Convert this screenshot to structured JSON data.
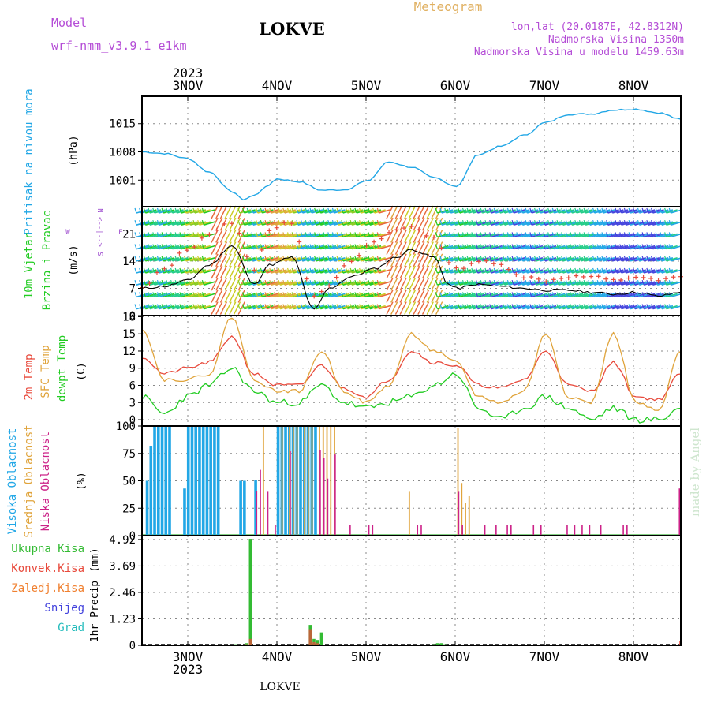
{
  "header": {
    "model_label": "Model",
    "model_value": "wrf-nmm_v3.9.1  e1km",
    "location": "LOKVE",
    "meteogram": "Meteogram",
    "lonlat": "lon,lat (20.0187E, 42.8312N)",
    "altitude": "Nadmorska Visina 1350m",
    "model_altitude": "Nadmorska Visina u modelu 1459.63m",
    "footer": "LOKVE",
    "watermark": "made by Angel",
    "year_top": "2023",
    "year_bottom": "2023",
    "days": [
      "3NOV",
      "4NOV",
      "5NOV",
      "6NOV",
      "7NOV",
      "8NOV"
    ]
  },
  "colors": {
    "pressure": "#22a7e6",
    "wind_speed_line": "#000000",
    "gust": "#e84a3c",
    "temp2m": "#e84a3c",
    "sfc_temp": "#e0a43c",
    "dewpt": "#22cc22",
    "cloud_high": "#22a7e6",
    "cloud_mid": "#e0a43c",
    "cloud_low": "#cc2288",
    "precip_total": "#33bb33",
    "precip_conv": "#e84a3c",
    "precip_frozen": "#f08030",
    "precip_snow": "#4444dd",
    "precip_grad": "#22bbbb"
  },
  "chart_data": [
    {
      "type": "line",
      "panel": "pressure",
      "ylabel_left": "Pritisak na nivou mora",
      "unit": "(hPa)",
      "yticks": [
        1001,
        1008,
        1015
      ],
      "ylim": [
        994.4,
        1021.8
      ],
      "x_hours": [
        0,
        6,
        12,
        18,
        24,
        27,
        30,
        33,
        36,
        42,
        48,
        54,
        60,
        66,
        72,
        78,
        84,
        90,
        96,
        102,
        108,
        114,
        120,
        126,
        132,
        138,
        144
      ],
      "values": [
        1008,
        1007.6,
        1006.4,
        1003,
        998.2,
        996.2,
        997.2,
        999.2,
        1001.3,
        1000.6,
        998.5,
        998.6,
        1000.7,
        1005.5,
        1004.2,
        1001.6,
        999.5,
        1007.4,
        1009.4,
        1012.1,
        1015.3,
        1017.3,
        1017.4,
        1018.4,
        1018.6,
        1017.7,
        1016.1
      ]
    },
    {
      "type": "line",
      "panel": "wind",
      "ylabel_left": [
        "10m Vjetar",
        "Brzina i Pravac"
      ],
      "unit": "(m/s)",
      "compass": {
        "w": "W",
        "e": "E",
        "n": "N",
        "s": "S"
      },
      "yticks": [
        0,
        7,
        14,
        21
      ],
      "ylim": [
        0,
        28
      ],
      "series": [
        {
          "name": "speed",
          "x_hours": [
            0,
            6,
            12,
            18,
            24,
            30,
            34,
            40,
            46,
            50,
            56,
            62,
            68,
            72,
            78,
            82,
            84,
            90,
            96,
            102,
            108,
            114,
            120,
            126,
            132,
            138,
            144
          ],
          "values": [
            7,
            7.5,
            9,
            13,
            18,
            8,
            13,
            15,
            1.5,
            7,
            10,
            12,
            15,
            17,
            15,
            8,
            7,
            8,
            7.5,
            7,
            6.5,
            6.5,
            6,
            5.5,
            6,
            5,
            6
          ]
        },
        {
          "name": "gust",
          "x_hours": [
            0,
            6,
            12,
            18,
            24,
            30,
            34,
            40,
            46,
            50,
            56,
            62,
            68,
            72,
            78,
            82,
            84,
            90,
            96,
            102,
            108,
            114,
            120,
            126,
            132,
            138,
            144
          ],
          "values": [
            7,
            12,
            17,
            21,
            24,
            12,
            22,
            24,
            5,
            8,
            14,
            19,
            22,
            23,
            20,
            14,
            12,
            14,
            13,
            10,
            9,
            10,
            10,
            9,
            10,
            9,
            10
          ]
        }
      ]
    },
    {
      "type": "line",
      "panel": "temperature",
      "ylabel_left": [
        "2m Temp",
        "SFC Temp",
        "dewpt Temp"
      ],
      "unit": "(C)",
      "yticks": [
        0,
        3,
        6,
        9,
        12,
        15,
        18
      ],
      "ylim": [
        -1.1,
        18.2
      ],
      "x_hours": [
        0,
        6,
        12,
        18,
        24,
        30,
        36,
        42,
        48,
        54,
        60,
        66,
        72,
        78,
        84,
        90,
        96,
        102,
        108,
        114,
        120,
        126,
        132,
        138,
        144
      ],
      "series": [
        {
          "name": "2m Temp",
          "values": [
            11,
            8,
            9,
            10,
            14.5,
            8,
            6,
            6,
            9.5,
            5.5,
            4,
            7,
            12,
            10,
            9.5,
            6,
            5.5,
            7,
            12,
            6,
            5,
            10,
            4,
            3.5,
            8
          ]
        },
        {
          "name": "SFC Temp",
          "values": [
            16,
            7,
            7,
            8,
            18,
            7,
            5,
            5,
            12,
            5,
            3,
            6,
            15,
            12,
            10,
            4,
            3,
            5,
            15,
            4,
            3,
            15,
            3,
            1.5,
            12
          ]
        },
        {
          "name": "dewpt Temp",
          "values": [
            4,
            1,
            4,
            6,
            9,
            5,
            3,
            3,
            6,
            3,
            2,
            3,
            4,
            6,
            8,
            2,
            0,
            2,
            4,
            2,
            0,
            2,
            0,
            0,
            2
          ]
        }
      ]
    },
    {
      "type": "bar",
      "panel": "clouds",
      "ylabel_left": [
        "Visoka Oblacnost",
        "Srednja Oblacnost",
        "Niska Oblacnost"
      ],
      "unit": "(%)",
      "yticks": [
        0,
        25,
        50,
        75,
        100
      ],
      "ylim": [
        0,
        100
      ],
      "series": [
        {
          "name": "Visoka Oblacnost",
          "hours": [
            1,
            2,
            3,
            4,
            5,
            6,
            7,
            11,
            12,
            13,
            14,
            15,
            16,
            17,
            18,
            19,
            20,
            26,
            27,
            30,
            36,
            37,
            38,
            39,
            40,
            41,
            42,
            43,
            44,
            45,
            46
          ],
          "values": [
            50,
            82,
            100,
            100,
            100,
            100,
            100,
            43,
            100,
            100,
            100,
            100,
            100,
            100,
            100,
            100,
            100,
            50,
            50,
            51,
            100,
            100,
            100,
            100,
            100,
            100,
            100,
            100,
            100,
            100,
            100
          ]
        },
        {
          "name": "Srednja Oblacnost",
          "hours": [
            32,
            37,
            39,
            40,
            41,
            43,
            44,
            45,
            47,
            48,
            49,
            50,
            51,
            71,
            84,
            85,
            86,
            87
          ],
          "values": [
            100,
            100,
            100,
            100,
            100,
            100,
            100,
            100,
            100,
            100,
            100,
            100,
            100,
            40,
            98,
            48,
            30,
            36
          ]
        },
        {
          "name": "Niska Oblacnost",
          "hours": [
            30,
            31,
            33,
            35,
            39,
            47,
            48,
            49,
            51,
            55,
            60,
            61,
            73,
            74,
            84,
            85,
            91,
            94,
            97,
            98,
            104,
            106,
            113,
            115,
            117,
            119,
            122,
            128,
            129,
            143
          ],
          "values": [
            41,
            60,
            40,
            10,
            77,
            78,
            71,
            52,
            74,
            10,
            10,
            10,
            10,
            10,
            40,
            10,
            10,
            10,
            10,
            10,
            10,
            10,
            10,
            10,
            10,
            10,
            10,
            10,
            10,
            43
          ]
        }
      ]
    },
    {
      "type": "bar",
      "panel": "precip",
      "legend": [
        "Ukupna Kisa",
        "Konvek.Kisa",
        "Zaledj.Kisa",
        "Snijeg",
        "Grad"
      ],
      "ylabel_left": "1hr Precip",
      "unit": "(mm)",
      "yticks": [
        0,
        1.23,
        2.46,
        3.69,
        4.92
      ],
      "ylim": [
        0,
        5.1
      ],
      "series": [
        {
          "name": "Ukupna Kisa",
          "hours": [
            25,
            28,
            29,
            45,
            46,
            47,
            48,
            78,
            79,
            80,
            81
          ],
          "values": [
            0.05,
            0.1,
            4.95,
            0.95,
            0.3,
            0.25,
            0.6,
            0.05,
            0.1,
            0.1,
            0.05
          ]
        },
        {
          "name": "Konvek.Kisa",
          "hours": [
            28,
            29,
            45,
            46,
            47,
            144
          ],
          "values": [
            0.05,
            0.3,
            0.75,
            0.15,
            0.1,
            0.2
          ]
        }
      ]
    }
  ]
}
